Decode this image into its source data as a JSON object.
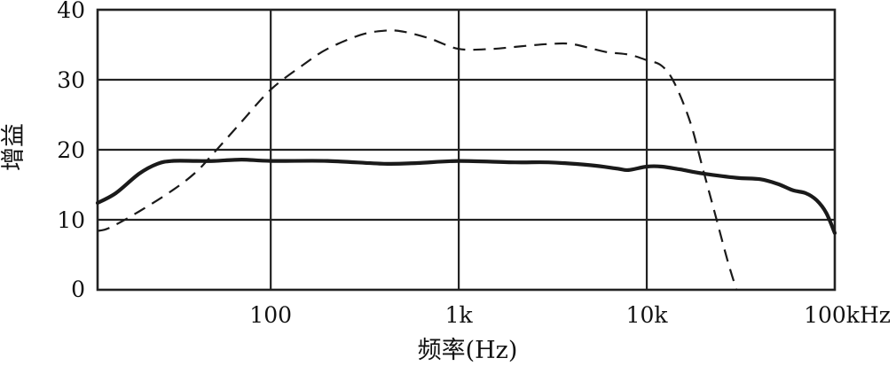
{
  "chart_data": {
    "type": "line",
    "xscale": "log",
    "xlim": [
      12,
      100000
    ],
    "ylim": [
      0,
      40
    ],
    "xlabel": "频率(Hz)",
    "ylabel": "增益",
    "x_ticks": [
      {
        "value": 100,
        "label": "100"
      },
      {
        "value": 1000,
        "label": "1k"
      },
      {
        "value": 10000,
        "label": "10k"
      },
      {
        "value": 100000,
        "label": "100kHz"
      }
    ],
    "y_ticks": [
      {
        "value": 0,
        "label": "0"
      },
      {
        "value": 10,
        "label": "10"
      },
      {
        "value": 20,
        "label": "20"
      },
      {
        "value": 30,
        "label": "30"
      },
      {
        "value": 40,
        "label": "40"
      }
    ],
    "grid": true,
    "series": [
      {
        "style": "solid",
        "color": "#1a1a1a",
        "points": [
          [
            12,
            12.4
          ],
          [
            15,
            13.8
          ],
          [
            20,
            16.6
          ],
          [
            25,
            18.0
          ],
          [
            30,
            18.4
          ],
          [
            40,
            18.4
          ],
          [
            50,
            18.4
          ],
          [
            70,
            18.6
          ],
          [
            100,
            18.4
          ],
          [
            200,
            18.4
          ],
          [
            400,
            18.0
          ],
          [
            600,
            18.1
          ],
          [
            1000,
            18.4
          ],
          [
            2000,
            18.2
          ],
          [
            3000,
            18.2
          ],
          [
            5000,
            17.8
          ],
          [
            7000,
            17.3
          ],
          [
            8000,
            17.1
          ],
          [
            10000,
            17.6
          ],
          [
            12000,
            17.6
          ],
          [
            15000,
            17.2
          ],
          [
            20000,
            16.6
          ],
          [
            30000,
            16.0
          ],
          [
            40000,
            15.8
          ],
          [
            50000,
            15.1
          ],
          [
            60000,
            14.2
          ],
          [
            70000,
            13.8
          ],
          [
            80000,
            12.8
          ],
          [
            90000,
            11.0
          ],
          [
            100000,
            8.1
          ]
        ]
      },
      {
        "style": "dashed",
        "color": "#1a1a1a",
        "points": [
          [
            12,
            8.4
          ],
          [
            14,
            8.9
          ],
          [
            20,
            11.2
          ],
          [
            30,
            14.2
          ],
          [
            40,
            16.8
          ],
          [
            50,
            19.6
          ],
          [
            70,
            24.0
          ],
          [
            100,
            28.6
          ],
          [
            150,
            32.2
          ],
          [
            200,
            34.4
          ],
          [
            300,
            36.4
          ],
          [
            400,
            37.0
          ],
          [
            500,
            36.9
          ],
          [
            700,
            35.9
          ],
          [
            1000,
            34.4
          ],
          [
            1500,
            34.4
          ],
          [
            2000,
            34.7
          ],
          [
            3000,
            35.1
          ],
          [
            4000,
            35.1
          ],
          [
            6000,
            34.0
          ],
          [
            8000,
            33.6
          ],
          [
            10000,
            32.8
          ],
          [
            12000,
            32.0
          ],
          [
            14000,
            29.6
          ],
          [
            17000,
            24.0
          ],
          [
            20000,
            17.0
          ],
          [
            23000,
            11.0
          ],
          [
            27000,
            4.0
          ],
          [
            30000,
            0.0
          ]
        ]
      }
    ]
  }
}
